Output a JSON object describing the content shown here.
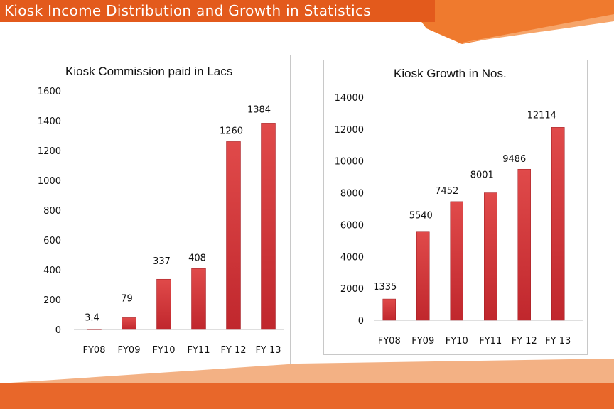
{
  "page": {
    "title": "Kiosk Income Distribution and Growth in Statistics",
    "accent_color": "#e35a1c",
    "bar_color": "#c0272d"
  },
  "chart_data": [
    {
      "type": "bar",
      "title": "Kiosk Commission paid in Lacs",
      "categories": [
        "FY08",
        "FY09",
        "FY10",
        "FY11",
        "FY 12",
        "FY 13"
      ],
      "values": [
        3.4,
        79,
        337,
        408,
        1260,
        1384
      ],
      "value_labels": [
        "3.4",
        "79",
        "337",
        "408",
        "1260",
        "1384"
      ],
      "y_ticks": [
        0,
        200,
        400,
        600,
        800,
        1000,
        1200,
        1400,
        1600
      ],
      "ylim": [
        0,
        1600
      ],
      "xlabel": "",
      "ylabel": "",
      "grid": false,
      "legend": "none"
    },
    {
      "type": "bar",
      "title": "Kiosk Growth in Nos.",
      "categories": [
        "FY08",
        "FY09",
        "FY10",
        "FY11",
        "FY 12",
        "FY 13"
      ],
      "values": [
        1335,
        5540,
        7452,
        8001,
        9486,
        12114
      ],
      "value_labels": [
        "1335",
        "5540",
        "7452",
        "8001",
        "9486",
        "12114"
      ],
      "y_ticks": [
        0,
        2000,
        4000,
        6000,
        8000,
        10000,
        12000,
        14000
      ],
      "ylim": [
        0,
        14000
      ],
      "xlabel": "",
      "ylabel": "",
      "grid": false,
      "legend": "none"
    }
  ]
}
